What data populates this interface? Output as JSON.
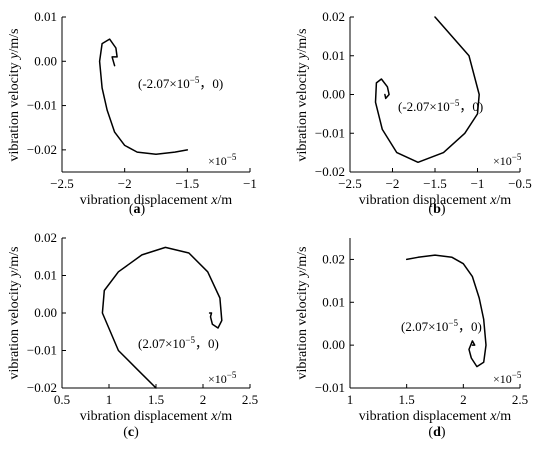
{
  "chart_data": [
    {
      "type": "line",
      "panel": "(a)",
      "panel_letter": "a",
      "xlabel": "vibration displacement",
      "xvar": "x",
      "xunit": "/m",
      "ylabel": "vibration velocity",
      "yvar": "y",
      "yunit": "/m/s",
      "x_multiplier": "×10",
      "x_multiplier_exp": "−5",
      "xlim": [
        -2.5,
        -1.0
      ],
      "ylim": [
        -0.025,
        0.01
      ],
      "xticks": [
        -2.5,
        -2.0,
        -1.5,
        -1.0
      ],
      "xtick_labels": [
        "−2.5",
        "−2",
        "−1.5",
        "−1"
      ],
      "yticks": [
        0.01,
        0.0,
        -0.01,
        -0.02
      ],
      "ytick_labels": [
        "0.01",
        "0.00",
        "−0.01",
        "−0.02"
      ],
      "annotation": {
        "x_base": "(-2.07×10",
        "x_exp": "−5",
        "rest": "，0)"
      },
      "series": [
        {
          "x": [
            -1.5,
            -1.6,
            -1.75,
            -1.9,
            -2.0,
            -2.08,
            -2.14,
            -2.18,
            -2.2,
            -2.18,
            -2.12,
            -2.07,
            -2.06,
            -2.1,
            -2.08
          ],
          "y": [
            -0.02,
            -0.0205,
            -0.021,
            -0.0205,
            -0.019,
            -0.016,
            -0.011,
            -0.006,
            0.0,
            0.004,
            0.005,
            0.003,
            0.001,
            0.001,
            -0.001
          ]
        }
      ]
    },
    {
      "type": "line",
      "panel": "(b)",
      "panel_letter": "b",
      "xlabel": "vibration displacement",
      "xvar": "x",
      "xunit": "/m",
      "ylabel": "vibration velocity",
      "yvar": "y",
      "yunit": "/m/s",
      "x_multiplier": "×10",
      "x_multiplier_exp": "−5",
      "xlim": [
        -2.5,
        -0.5
      ],
      "ylim": [
        -0.02,
        0.02
      ],
      "xticks": [
        -2.5,
        -2.0,
        -1.5,
        -1.0,
        -0.5
      ],
      "xtick_labels": [
        "−2.5",
        "−2",
        "−1.5",
        "−1",
        "−0.5"
      ],
      "yticks": [
        0.02,
        0.01,
        0.0,
        -0.01,
        -0.02
      ],
      "ytick_labels": [
        "0.02",
        "0.01",
        "0.00",
        "−0.01",
        "−0.02"
      ],
      "annotation": {
        "x_base": "(-2.07×10",
        "x_exp": "−5",
        "rest": "，0)"
      },
      "series": [
        {
          "x": [
            -1.5,
            -1.3,
            -1.1,
            -0.98,
            -1.0,
            -1.15,
            -1.4,
            -1.7,
            -1.95,
            -2.12,
            -2.2,
            -2.19,
            -2.13,
            -2.06,
            -2.04,
            -2.08,
            -2.09
          ],
          "y": [
            0.02,
            0.015,
            0.01,
            0.0,
            -0.005,
            -0.01,
            -0.015,
            -0.0175,
            -0.015,
            -0.009,
            -0.002,
            0.003,
            0.004,
            0.002,
            0.0,
            -0.001,
            0.0
          ]
        }
      ]
    },
    {
      "type": "line",
      "panel": "(c)",
      "panel_letter": "c",
      "xlabel": "vibration displacement",
      "xvar": "x",
      "xunit": "/m",
      "ylabel": "vibration velocity",
      "yvar": "y",
      "yunit": "/m/s",
      "x_multiplier": "×10",
      "x_multiplier_exp": "−5",
      "xlim": [
        0.5,
        2.5
      ],
      "ylim": [
        -0.02,
        0.02
      ],
      "xticks": [
        0.5,
        1.0,
        1.5,
        2.0,
        2.5
      ],
      "xtick_labels": [
        "0.5",
        "1",
        "1.5",
        "2",
        "2.5"
      ],
      "yticks": [
        0.02,
        0.01,
        0.0,
        -0.01,
        -0.02
      ],
      "ytick_labels": [
        "0.02",
        "0.01",
        "0.00",
        "−0.01",
        "−0.02"
      ],
      "annotation": {
        "x_base": "(2.07×10",
        "x_exp": "−5",
        "rest": "，0)"
      },
      "series": [
        {
          "x": [
            1.5,
            1.3,
            1.1,
            0.93,
            0.95,
            1.1,
            1.35,
            1.6,
            1.85,
            2.05,
            2.18,
            2.2,
            2.16,
            2.1,
            2.08,
            2.09,
            2.07
          ],
          "y": [
            -0.02,
            -0.015,
            -0.01,
            0.0,
            0.006,
            0.011,
            0.0155,
            0.0175,
            0.016,
            0.011,
            0.004,
            -0.002,
            -0.004,
            -0.003,
            -0.001,
            0.0,
            0.0
          ]
        }
      ]
    },
    {
      "type": "line",
      "panel": "(d)",
      "panel_letter": "d",
      "xlabel": "vibration displacement",
      "xvar": "x",
      "xunit": "/m",
      "ylabel": "vibration velocity",
      "yvar": "y",
      "yunit": "/m/s",
      "x_multiplier": "×10",
      "x_multiplier_exp": "−5",
      "xlim": [
        1.0,
        2.5
      ],
      "ylim": [
        -0.01,
        0.025
      ],
      "xticks": [
        1.0,
        1.5,
        2.0,
        2.5
      ],
      "xtick_labels": [
        "1",
        "1.5",
        "2",
        "2.5"
      ],
      "yticks": [
        0.02,
        0.01,
        0.0,
        -0.01
      ],
      "ytick_labels": [
        "0.02",
        "0.01",
        "0.00",
        "−0.01"
      ],
      "annotation": {
        "x_base": "(2.07×10",
        "x_exp": "−5",
        "rest": "，0)"
      },
      "series": [
        {
          "x": [
            1.5,
            1.6,
            1.75,
            1.9,
            2.0,
            2.08,
            2.14,
            2.18,
            2.2,
            2.18,
            2.12,
            2.07,
            2.05,
            2.08,
            2.1,
            2.08
          ],
          "y": [
            0.02,
            0.0205,
            0.021,
            0.0205,
            0.019,
            0.016,
            0.011,
            0.006,
            0.0,
            -0.004,
            -0.005,
            -0.003,
            -0.001,
            0.001,
            0.0,
            0.0
          ]
        }
      ]
    }
  ]
}
